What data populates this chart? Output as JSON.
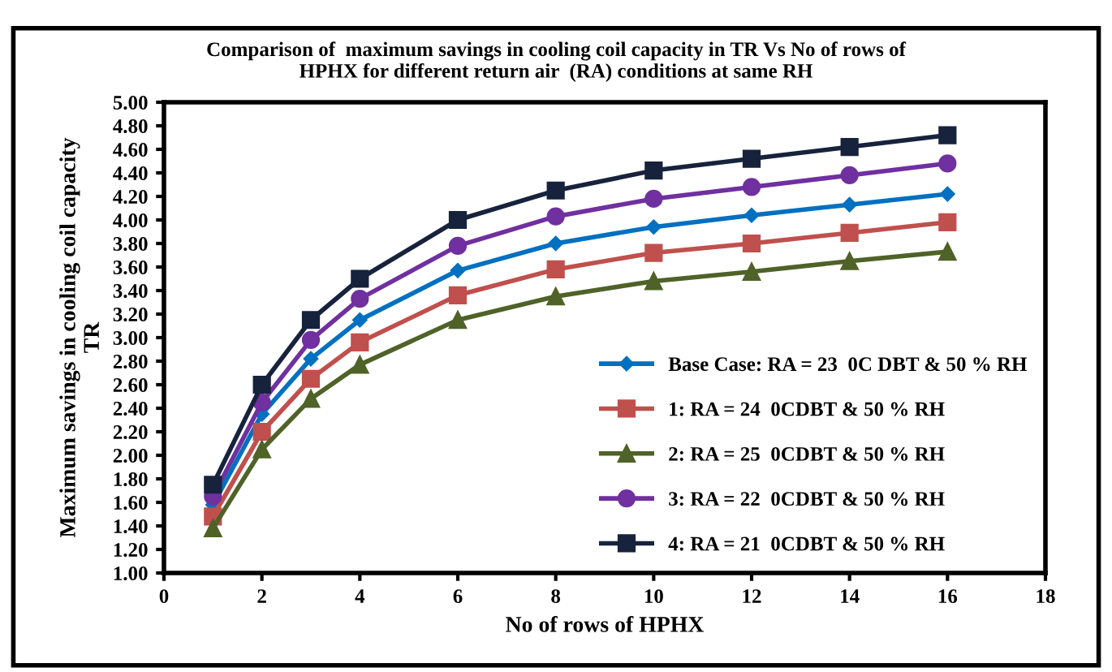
{
  "chart_data": {
    "type": "line",
    "title": "Comparison of  maximum savings in cooling coil capacity in TR Vs No of rows of\nHPHX for different return air  (RA) conditions at same RH",
    "xlabel": "No of rows of HPHX",
    "ylabel": "Maximum savings in cooling coil capacity\nTR",
    "x": [
      1,
      2,
      3,
      4,
      6,
      8,
      10,
      12,
      14,
      16
    ],
    "series": [
      {
        "name": "Base Case: RA = 23  0C DBT & 50 % RH",
        "color": "#0070c0",
        "marker": "diamond",
        "values": [
          1.58,
          2.35,
          2.82,
          3.15,
          3.57,
          3.8,
          3.94,
          4.04,
          4.13,
          4.22
        ]
      },
      {
        "name": "1: RA = 24  0CDBT & 50 % RH",
        "color": "#c0504d",
        "marker": "square",
        "values": [
          1.48,
          2.2,
          2.65,
          2.96,
          3.36,
          3.58,
          3.72,
          3.8,
          3.89,
          3.98
        ]
      },
      {
        "name": "2: RA = 25  0CDBT & 50 % RH",
        "color": "#4f6228",
        "marker": "triangle",
        "values": [
          1.38,
          2.05,
          2.48,
          2.77,
          3.15,
          3.35,
          3.48,
          3.56,
          3.65,
          3.73
        ]
      },
      {
        "name": "3: RA = 22  0CDBT & 50 % RH",
        "color": "#7030a0",
        "marker": "circle",
        "values": [
          1.65,
          2.45,
          2.98,
          3.33,
          3.78,
          4.03,
          4.18,
          4.28,
          4.38,
          4.48
        ]
      },
      {
        "name": "4: RA = 21  0CDBT & 50 % RH",
        "color": "#17233d",
        "marker": "square",
        "values": [
          1.75,
          2.6,
          3.15,
          3.5,
          4.0,
          4.25,
          4.42,
          4.52,
          4.62,
          4.72
        ]
      }
    ],
    "xlim": [
      0,
      18
    ],
    "xticks": [
      0,
      2,
      4,
      6,
      8,
      10,
      12,
      14,
      16,
      18
    ],
    "ylim": [
      1.0,
      5.0
    ],
    "yticks": [
      {
        "value": 1.0,
        "label": "1.00"
      },
      {
        "value": 1.2,
        "label": "1.20"
      },
      {
        "value": 1.4,
        "label": "1.40"
      },
      {
        "value": 1.6,
        "label": "1.60"
      },
      {
        "value": 1.8,
        "label": "1.80"
      },
      {
        "value": 2.0,
        "label": "2.00"
      },
      {
        "value": 2.2,
        "label": "2.20"
      },
      {
        "value": 2.4,
        "label": "2.40"
      },
      {
        "value": 2.6,
        "label": "2.60"
      },
      {
        "value": 2.8,
        "label": "2.80"
      },
      {
        "value": 3.0,
        "label": "3.00"
      },
      {
        "value": 3.2,
        "label": "3.20"
      },
      {
        "value": 3.4,
        "label": "3.40"
      },
      {
        "value": 3.6,
        "label": "3.60"
      },
      {
        "value": 3.8,
        "label": "3.80"
      },
      {
        "value": 4.0,
        "label": "4.00"
      },
      {
        "value": 4.2,
        "label": "4.20"
      },
      {
        "value": 4.4,
        "label": "4.40"
      },
      {
        "value": 4.6,
        "label": "4.60"
      },
      {
        "value": 4.8,
        "label": "4.80"
      },
      {
        "value": 5.0,
        "label": "5.00"
      }
    ],
    "grid": false,
    "legend": "bottom right"
  }
}
